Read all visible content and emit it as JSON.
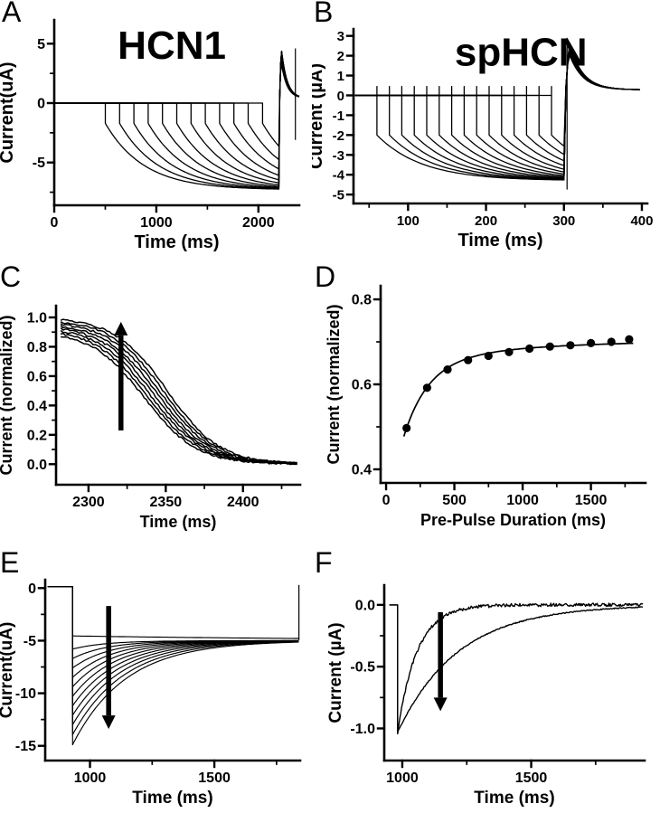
{
  "figure": {
    "background": "#ffffff",
    "ink": "#000000",
    "panel_count": 6
  },
  "chart_data": [
    {
      "panel": "A",
      "type": "line",
      "title": "HCN1",
      "xlabel": "Time (ms)",
      "ylabel": "Current(uA)",
      "xlim": [
        0,
        2400
      ],
      "ylim": [
        -8.6,
        7.0
      ],
      "xtick_vals": [
        0,
        1000,
        2000
      ],
      "xtick_labels": [
        "0",
        "1000",
        "2000"
      ],
      "ytick_vals": [
        5,
        0,
        -5
      ],
      "ytick_labels": [
        "5",
        "0",
        "-5"
      ],
      "xminor_vals": [
        500,
        1500
      ],
      "yminor_vals": [
        2.5,
        -2.5,
        -7.5
      ],
      "grid": false,
      "series_generator": {
        "kind": "pulse_family",
        "baseline_x0": 0,
        "pulse_starts": [
          500,
          640,
          780,
          920,
          1060,
          1200,
          1340,
          1480,
          1620,
          1760,
          1900,
          2040
        ],
        "pulse_end": 2200,
        "instant_level": -1.7,
        "steady_level": -7.3,
        "tau": 380,
        "dt": 8,
        "dt2": 4,
        "tail_peak": 5.0,
        "rise_tau": 9,
        "tail_tau": 55,
        "tail_end_level": 0.4,
        "x_end": 2400
      },
      "annotations": [
        {
          "kind": "vline",
          "x": 2362,
          "y1": -3.1,
          "y2": 4.6
        }
      ]
    },
    {
      "panel": "B",
      "type": "line",
      "title": "spHCN",
      "xlabel": "Time (ms)",
      "ylabel": "Current (µA)",
      "xlim": [
        30,
        407
      ],
      "ylim": [
        -5.45,
        3.35
      ],
      "xtick_vals": [
        100,
        200,
        300,
        400
      ],
      "xtick_labels": [
        "100",
        "200",
        "300",
        "400"
      ],
      "ytick_vals": [
        3,
        2,
        1,
        0,
        -1,
        -2,
        -3,
        -4,
        -5
      ],
      "ytick_labels": [
        "3",
        "2",
        "1",
        "0",
        "-1",
        "-2",
        "-3",
        "-4",
        "-5"
      ],
      "xminor_vals": [
        50,
        150,
        250,
        350
      ],
      "yminor_vals": [],
      "grid": false,
      "series_generator": {
        "kind": "pulse_family",
        "baseline_x0": 32,
        "pulse_starts": [
          60,
          76,
          92,
          108,
          124,
          140,
          156,
          172,
          188,
          204,
          220,
          236,
          252,
          268,
          284
        ],
        "pulse_end": 300,
        "instant_level": -2.0,
        "steady_level": -4.3,
        "tau": 58,
        "dt": 4,
        "dt2": 3,
        "onset_spike": 0.45,
        "tail_peak": 2.9,
        "rise_tau": 2.5,
        "tail_tau": 17,
        "tail_end_level": 0.28,
        "x_end": 400
      },
      "annotations": [
        {
          "kind": "vline",
          "x": 304,
          "y1": -4.75,
          "y2": 2.9
        }
      ]
    },
    {
      "panel": "C",
      "type": "line",
      "title": "",
      "xlabel": "Time (ms)",
      "ylabel": "Current (normalized)",
      "xlim": [
        2279,
        2437
      ],
      "ylim": [
        -0.14,
        1.08
      ],
      "xtick_vals": [
        2300,
        2350,
        2400
      ],
      "xtick_labels": [
        "2300",
        "2350",
        "2400"
      ],
      "ytick_vals": [
        1.0,
        0.8,
        0.6,
        0.4,
        0.2,
        0.0
      ],
      "ytick_labels": [
        "1.0",
        "0.8",
        "0.6",
        "0.4",
        "0.2",
        "0.0"
      ],
      "xminor_vals": [
        2325,
        2375,
        2425
      ],
      "yminor_vals": [
        0.9,
        0.7,
        0.5,
        0.3,
        0.1
      ],
      "grid": false,
      "series_generator": {
        "kind": "sigmoid_decay_family",
        "n": 8,
        "x0": 2282,
        "x1": 2436,
        "amp_min": 0.91,
        "amp_max": 1.0,
        "center_min": 2336,
        "center_max": 2351,
        "slope": 17,
        "noise": 0.007
      },
      "annotations": [
        {
          "kind": "arrow",
          "x": 2321,
          "y1": 0.23,
          "y2": 0.97,
          "dir": "up"
        }
      ]
    },
    {
      "panel": "D",
      "type": "scatter",
      "title": "",
      "xlabel": "Pre-Pulse Duration (ms)",
      "ylabel": "Current (normalized)",
      "xlim": [
        -40,
        1900
      ],
      "ylim": [
        0.368,
        0.832
      ],
      "xtick_vals": [
        0,
        500,
        1000,
        1500
      ],
      "xtick_labels": [
        "0",
        "500",
        "1000",
        "1500"
      ],
      "ytick_vals": [
        0.8,
        0.6,
        0.4
      ],
      "ytick_labels": [
        "0.8",
        "0.6",
        "0.4"
      ],
      "xminor_vals": [
        250,
        750,
        1250,
        1750
      ],
      "yminor_vals": [
        0.7,
        0.5
      ],
      "grid": false,
      "points": {
        "x": [
          150,
          300,
          450,
          600,
          750,
          900,
          1050,
          1200,
          1350,
          1500,
          1650,
          1780
        ],
        "y": [
          0.497,
          0.592,
          0.635,
          0.657,
          0.667,
          0.676,
          0.684,
          0.689,
          0.692,
          0.697,
          0.7,
          0.706
        ]
      },
      "fit": {
        "kind": "double_exp",
        "y_inf": 0.703,
        "a1": 0.155,
        "tau1": 180,
        "a2": 0.051,
        "tau2": 800,
        "x0": 150,
        "x_start": 130,
        "x_end": 1810
      }
    },
    {
      "panel": "E",
      "type": "line",
      "title": "",
      "xlabel": "Time (ms)",
      "ylabel": "Current(uA)",
      "xlim": [
        820,
        1845
      ],
      "ylim": [
        -16.4,
        0.8
      ],
      "xtick_vals": [
        1000,
        1500
      ],
      "xtick_labels": [
        "1000",
        "1500"
      ],
      "ytick_vals": [
        0,
        -5,
        -10,
        -15
      ],
      "ytick_labels": [
        "0",
        "-5",
        "-10",
        "-15"
      ],
      "xminor_vals": [
        1250,
        1750
      ],
      "yminor_vals": [
        -2.5,
        -7.5,
        -12.5
      ],
      "grid": false,
      "series_generator": {
        "kind": "recovery_family",
        "x0": 930,
        "x1": 1840,
        "baseline_x0": 830,
        "vstart_from": 0.15,
        "converge": -5.0,
        "start_levels": [
          -4.55,
          -5.8,
          -6.7,
          -7.6,
          -8.5,
          -9.4,
          -10.3,
          -11.2,
          -12.1,
          -13.0,
          -13.95,
          -14.9
        ],
        "taus": [
          1200,
          133,
          141,
          149,
          157,
          165,
          173,
          181,
          189,
          197,
          205,
          213
        ]
      },
      "annotations": [
        {
          "kind": "arrow",
          "x": 1075,
          "y1": -1.7,
          "y2": -13.4,
          "dir": "down"
        },
        {
          "kind": "vline",
          "x": 1840,
          "y1": -4.95,
          "y2": 0.3
        }
      ]
    },
    {
      "panel": "F",
      "type": "line",
      "title": "",
      "xlabel": "Time (ms)",
      "ylabel": "Current (µA)",
      "xlim": [
        930,
        1940
      ],
      "ylim": [
        -1.26,
        0.16
      ],
      "xtick_vals": [
        1000,
        1500
      ],
      "xtick_labels": [
        "1000",
        "1500"
      ],
      "ytick_vals": [
        0.0,
        -0.5,
        -1.0
      ],
      "ytick_labels": [
        "0.0",
        "-0.5",
        "-1.0"
      ],
      "xminor_vals": [
        1250,
        1750
      ],
      "yminor_vals": [
        -0.25,
        -0.75
      ],
      "grid": false,
      "series_generator": {
        "kind": "recovery_family",
        "x0": 982,
        "x1": 1935,
        "baseline_x0": 950,
        "vstart_from": 0.0,
        "converge": 0.0,
        "start_levels": [
          -1.03,
          -1.03
        ],
        "taus": [
          75,
          235
        ],
        "noises": [
          0.013,
          0.004
        ]
      },
      "annotations": [
        {
          "kind": "arrow",
          "x": 1148,
          "y1": -0.06,
          "y2": -0.86,
          "dir": "down"
        }
      ]
    }
  ]
}
